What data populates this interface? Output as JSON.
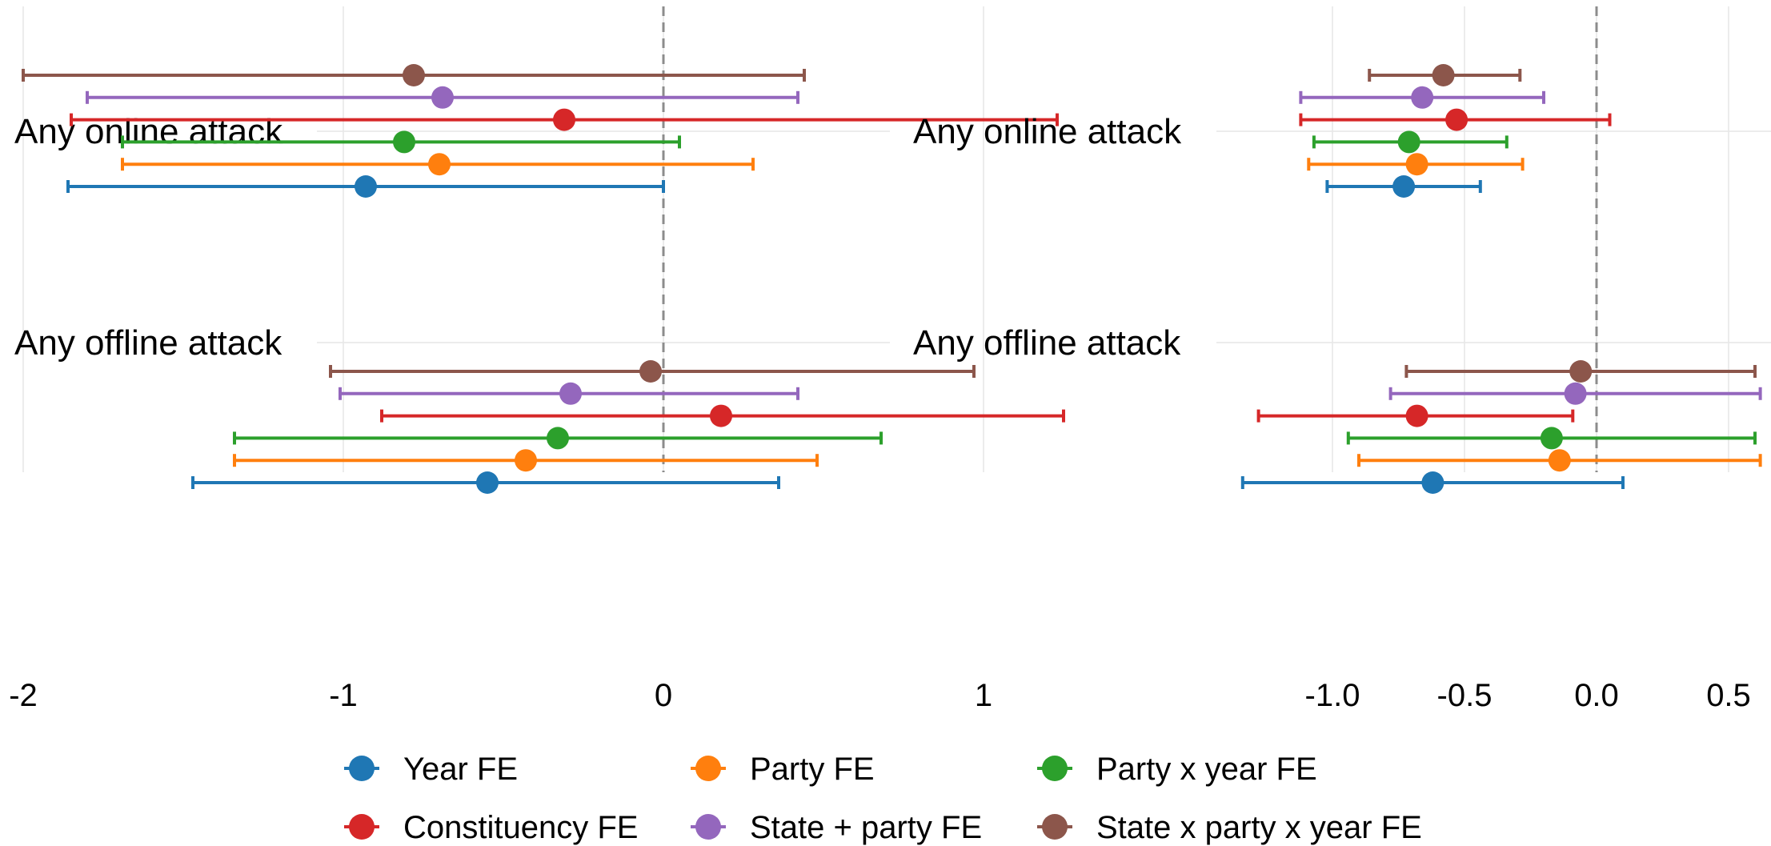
{
  "chart_data": [
    {
      "type": "forest",
      "panel": "left",
      "categories": [
        "Any online attack",
        "Any offline attack"
      ],
      "x_ticks": [
        -2,
        -1,
        0,
        1
      ],
      "x_tick_labels": [
        "-2",
        "-1",
        "0",
        "1"
      ],
      "xlim": [
        -2.16,
        1.4
      ],
      "reference_line": 0,
      "grid": true,
      "series": [
        {
          "name": "Year FE",
          "color": "#1f77b4",
          "estimates": [
            -0.93,
            -0.55
          ],
          "lower": [
            -1.86,
            -1.47
          ],
          "upper": [
            0.0,
            0.36
          ]
        },
        {
          "name": "Party FE",
          "color": "#ff7f0e",
          "estimates": [
            -0.7,
            -0.43
          ],
          "lower": [
            -1.69,
            -1.34
          ],
          "upper": [
            0.28,
            0.48
          ]
        },
        {
          "name": "Party x year FE",
          "color": "#2ca02c",
          "estimates": [
            -0.81,
            -0.33
          ],
          "lower": [
            -1.69,
            -1.34
          ],
          "upper": [
            0.05,
            0.68
          ]
        },
        {
          "name": "Constituency FE",
          "color": "#d62728",
          "estimates": [
            -0.31,
            0.18
          ],
          "lower": [
            -1.85,
            -0.88
          ],
          "upper": [
            1.23,
            1.25
          ]
        },
        {
          "name": "State + party FE",
          "color": "#9467bd",
          "estimates": [
            -0.69,
            -0.29
          ],
          "lower": [
            -1.8,
            -1.01
          ],
          "upper": [
            0.42,
            0.42
          ]
        },
        {
          "name": "State x party x year FE",
          "color": "#8c564b",
          "estimates": [
            -0.78,
            -0.04
          ],
          "lower": [
            -2.0,
            -1.04
          ],
          "upper": [
            0.44,
            0.97
          ]
        }
      ]
    },
    {
      "type": "forest",
      "panel": "right",
      "categories": [
        "Any online attack",
        "Any offline attack"
      ],
      "x_ticks": [
        -1.0,
        -0.5,
        0.0,
        0.5
      ],
      "x_tick_labels": [
        "-1.0",
        "-0.5",
        "0.0",
        "0.5"
      ],
      "xlim": [
        -1.44,
        0.62
      ],
      "reference_line": 0,
      "grid": true,
      "series": [
        {
          "name": "Year FE",
          "color": "#1f77b4",
          "estimates": [
            -0.73,
            -0.62
          ],
          "lower": [
            -1.02,
            -1.34
          ],
          "upper": [
            -0.44,
            0.1
          ]
        },
        {
          "name": "Party FE",
          "color": "#ff7f0e",
          "estimates": [
            -0.68,
            -0.14
          ],
          "lower": [
            -1.09,
            -0.9
          ],
          "upper": [
            -0.28,
            0.62
          ]
        },
        {
          "name": "Party x year FE",
          "color": "#2ca02c",
          "estimates": [
            -0.71,
            -0.17
          ],
          "lower": [
            -1.07,
            -0.94
          ],
          "upper": [
            -0.34,
            0.6
          ]
        },
        {
          "name": "Constituency FE",
          "color": "#d62728",
          "estimates": [
            -0.53,
            -0.68
          ],
          "lower": [
            -1.12,
            -1.28
          ],
          "upper": [
            0.05,
            -0.09
          ]
        },
        {
          "name": "State + party FE",
          "color": "#9467bd",
          "estimates": [
            -0.66,
            -0.08
          ],
          "lower": [
            -1.12,
            -0.78
          ],
          "upper": [
            -0.2,
            0.62
          ]
        },
        {
          "name": "State x party x year FE",
          "color": "#8c564b",
          "estimates": [
            -0.58,
            -0.06
          ],
          "lower": [
            -0.86,
            -0.72
          ],
          "upper": [
            -0.29,
            0.6
          ]
        }
      ]
    }
  ],
  "legend": {
    "placement": "bottom",
    "items": [
      {
        "name": "Year FE",
        "color": "#1f77b4"
      },
      {
        "name": "Party FE",
        "color": "#ff7f0e"
      },
      {
        "name": "Party x year FE",
        "color": "#2ca02c"
      },
      {
        "name": "Constituency FE",
        "color": "#d62728"
      },
      {
        "name": "State + party FE",
        "color": "#9467bd"
      },
      {
        "name": "State x party x year FE",
        "color": "#8c564b"
      }
    ]
  }
}
